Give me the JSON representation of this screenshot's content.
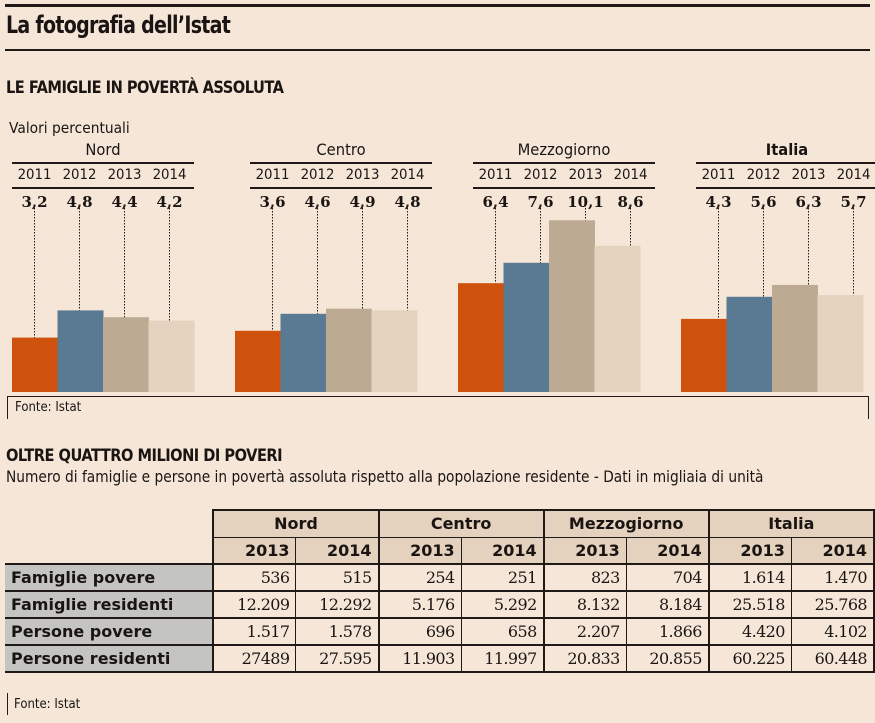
{
  "header": {
    "title": "La fotografia dell’Istat"
  },
  "section1": {
    "title": "LE FAMIGLIE IN POVERTÀ ASSOLUTA",
    "unit_label": "Valori percentuali",
    "source": "Fonte: Istat"
  },
  "colors": {
    "2011": "#cf520c",
    "2012": "#597a92",
    "2013": "#bcaa92",
    "2014": "#e4d3bf",
    "background": "#f5e6d8",
    "table_header": "#e4d1be",
    "row_label": "#c4c4c2"
  },
  "chart_data": {
    "type": "bar",
    "title": "LE FAMIGLIE IN POVERTÀ ASSOLUTA",
    "subtitle": "Valori percentuali",
    "xlabel": "",
    "ylabel": "",
    "ylim": [
      0,
      10.1
    ],
    "grid": false,
    "legend": "none",
    "years": [
      "2011",
      "2012",
      "2013",
      "2014"
    ],
    "groups": [
      {
        "name": "Nord",
        "bold": false,
        "values": [
          3.2,
          4.8,
          4.4,
          4.2
        ],
        "labels": [
          "3,2",
          "4,8",
          "4,4",
          "4,2"
        ]
      },
      {
        "name": "Centro",
        "bold": false,
        "values": [
          3.6,
          4.6,
          4.9,
          4.8
        ],
        "labels": [
          "3,6",
          "4,6",
          "4,9",
          "4,8"
        ]
      },
      {
        "name": "Mezzogiorno",
        "bold": false,
        "values": [
          6.4,
          7.6,
          10.1,
          8.6
        ],
        "labels": [
          "6,4",
          "7,6",
          "10,1",
          "8,6"
        ]
      },
      {
        "name": "Italia",
        "bold": true,
        "values": [
          4.3,
          5.6,
          6.3,
          5.7
        ],
        "labels": [
          "4,3",
          "5,6",
          "6,3",
          "5,7"
        ]
      }
    ],
    "source": "Fonte: Istat"
  },
  "section2": {
    "title": "OLTRE QUATTRO MILIONI DI POVERI",
    "description": "Numero di famiglie e persone in povertà assoluta rispetto alla popolazione residente - Dati in migliaia di unità",
    "regions": [
      "Nord",
      "Centro",
      "Mezzogiorno",
      "Italia"
    ],
    "years": [
      "2013",
      "2014"
    ],
    "rows": [
      {
        "label": "Famiglie povere",
        "values": [
          "536",
          "515",
          "254",
          "251",
          "823",
          "704",
          "1.614",
          "1.470"
        ]
      },
      {
        "label": "Famiglie residenti",
        "values": [
          "12.209",
          "12.292",
          "5.176",
          "5.292",
          "8.132",
          "8.184",
          "25.518",
          "25.768"
        ]
      },
      {
        "label": "Persone povere",
        "values": [
          "1.517",
          "1.578",
          "696",
          "658",
          "2.207",
          "1.866",
          "4.420",
          "4.102"
        ]
      },
      {
        "label": "Persone residenti",
        "values": [
          "27489",
          "27.595",
          "11.903",
          "11.997",
          "20.833",
          "20.855",
          "60.225",
          "60.448"
        ]
      }
    ],
    "source": "Fonte: Istat"
  }
}
